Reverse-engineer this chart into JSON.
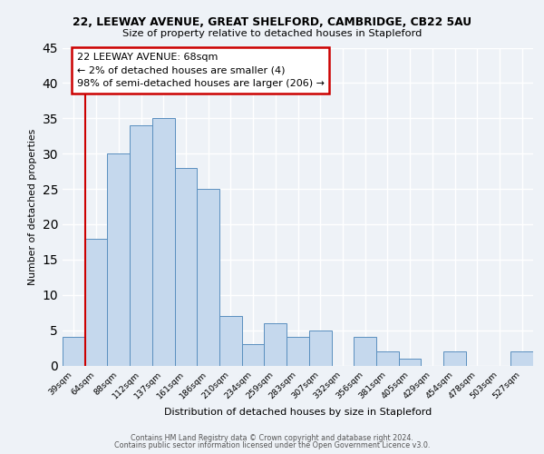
{
  "title1": "22, LEEWAY AVENUE, GREAT SHELFORD, CAMBRIDGE, CB22 5AU",
  "title2": "Size of property relative to detached houses in Stapleford",
  "xlabel": "Distribution of detached houses by size in Stapleford",
  "ylabel": "Number of detached properties",
  "bin_labels": [
    "39sqm",
    "64sqm",
    "88sqm",
    "112sqm",
    "137sqm",
    "161sqm",
    "186sqm",
    "210sqm",
    "234sqm",
    "259sqm",
    "283sqm",
    "307sqm",
    "332sqm",
    "356sqm",
    "381sqm",
    "405sqm",
    "429sqm",
    "454sqm",
    "478sqm",
    "503sqm",
    "527sqm"
  ],
  "bar_heights": [
    4,
    18,
    30,
    34,
    35,
    28,
    25,
    7,
    3,
    6,
    4,
    5,
    0,
    4,
    2,
    1,
    0,
    2,
    0,
    0,
    2
  ],
  "bar_color": "#c5d8ed",
  "bar_edge_color": "#5a8fbf",
  "ylim": [
    0,
    45
  ],
  "yticks": [
    0,
    5,
    10,
    15,
    20,
    25,
    30,
    35,
    40,
    45
  ],
  "annotation_title": "22 LEEWAY AVENUE: 68sqm",
  "annotation_line1": "← 2% of detached houses are smaller (4)",
  "annotation_line2": "98% of semi-detached houses are larger (206) →",
  "annotation_box_color": "#ffffff",
  "annotation_box_edge": "#cc0000",
  "property_line_color": "#cc0000",
  "footer1": "Contains HM Land Registry data © Crown copyright and database right 2024.",
  "footer2": "Contains public sector information licensed under the Open Government Licence v3.0.",
  "background_color": "#eef2f7"
}
